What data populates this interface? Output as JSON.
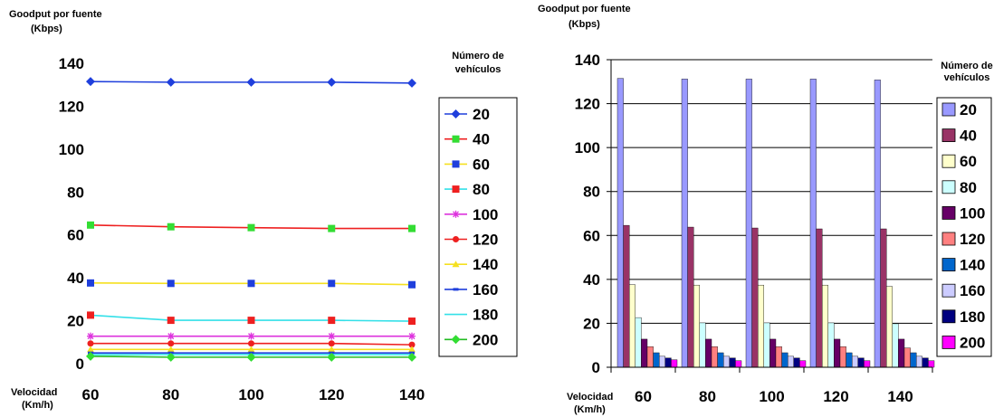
{
  "chart_data": [
    {
      "type": "line",
      "ylabel": [
        "Goodput por fuente",
        "(Kbps)"
      ],
      "xlabel": [
        "Velocidad",
        "(Km/h)"
      ],
      "legend_title": [
        "Número de",
        "vehículos"
      ],
      "x": [
        60,
        80,
        100,
        120,
        140
      ],
      "yticks": [
        0,
        20,
        40,
        60,
        80,
        100,
        120,
        140
      ],
      "ylim": [
        0,
        140
      ],
      "grid": false,
      "legend_position": "right",
      "series": [
        {
          "name": "20",
          "color": "#1f3fdc",
          "marker": "diamond",
          "values": [
            131.5,
            131.2,
            131.2,
            131.2,
            130.8
          ]
        },
        {
          "name": "40",
          "color": "#ee2020",
          "marker": "square",
          "marker_color": "#33dd33",
          "values": [
            64.6,
            63.8,
            63.4,
            63.0,
            63.0
          ]
        },
        {
          "name": "60",
          "color": "#f5e020",
          "marker": "square",
          "marker_color": "#1f3fdc",
          "values": [
            37.6,
            37.4,
            37.4,
            37.4,
            36.8
          ]
        },
        {
          "name": "80",
          "color": "#33e0e8",
          "marker": "square",
          "marker_color": "#ee2020",
          "values": [
            22.6,
            20.2,
            20.2,
            20.2,
            19.8
          ]
        },
        {
          "name": "100",
          "color": "#dd33dd",
          "marker": "star",
          "values": [
            12.8,
            12.8,
            12.8,
            12.8,
            12.8
          ]
        },
        {
          "name": "120",
          "color": "#ee2020",
          "marker": "circle",
          "values": [
            9.4,
            9.4,
            9.4,
            9.4,
            8.8
          ]
        },
        {
          "name": "140",
          "color": "#f5e020",
          "marker": "triangle",
          "values": [
            6.6,
            6.6,
            6.6,
            6.6,
            6.6
          ]
        },
        {
          "name": "160",
          "color": "#1f3fdc",
          "marker": "dash",
          "values": [
            5.0,
            5.0,
            5.0,
            5.0,
            5.0
          ]
        },
        {
          "name": "180",
          "color": "#33e0e8",
          "marker": "none",
          "values": [
            4.2,
            4.2,
            4.2,
            4.2,
            4.2
          ]
        },
        {
          "name": "200",
          "color": "#22bb22",
          "marker": "diamond",
          "marker_color": "#33dd33",
          "values": [
            3.4,
            3.0,
            3.0,
            3.0,
            3.0
          ]
        }
      ]
    },
    {
      "type": "bar",
      "ylabel": [
        "Goodput por fuente",
        "(Kbps)"
      ],
      "xlabel": [
        "Velocidad",
        "(Km/h)"
      ],
      "legend_title": [
        "Número de",
        "vehículos"
      ],
      "categories": [
        "60",
        "80",
        "100",
        "120",
        "140"
      ],
      "yticks": [
        0,
        20,
        40,
        60,
        80,
        100,
        120,
        140
      ],
      "ylim": [
        0,
        140
      ],
      "grid": true,
      "legend_position": "right",
      "series": [
        {
          "name": "20",
          "color": "#9999ff",
          "values": [
            131.5,
            131.2,
            131.2,
            131.2,
            130.8
          ]
        },
        {
          "name": "40",
          "color": "#993366",
          "values": [
            64.6,
            63.8,
            63.4,
            63.0,
            63.0
          ]
        },
        {
          "name": "60",
          "color": "#ffffcc",
          "values": [
            37.6,
            37.4,
            37.4,
            37.4,
            36.8
          ]
        },
        {
          "name": "80",
          "color": "#ccffff",
          "values": [
            22.6,
            20.2,
            20.2,
            20.2,
            19.8
          ]
        },
        {
          "name": "100",
          "color": "#660066",
          "values": [
            12.8,
            12.8,
            12.8,
            12.8,
            12.8
          ]
        },
        {
          "name": "120",
          "color": "#ff8080",
          "values": [
            9.4,
            9.4,
            9.4,
            9.4,
            8.8
          ]
        },
        {
          "name": "140",
          "color": "#0066cc",
          "values": [
            6.6,
            6.6,
            6.6,
            6.6,
            6.6
          ]
        },
        {
          "name": "160",
          "color": "#ccccff",
          "values": [
            5.0,
            5.0,
            5.0,
            5.0,
            5.0
          ]
        },
        {
          "name": "180",
          "color": "#000080",
          "values": [
            4.2,
            4.2,
            4.2,
            4.2,
            4.2
          ]
        },
        {
          "name": "200",
          "color": "#ff00ff",
          "values": [
            3.4,
            3.0,
            3.0,
            3.0,
            3.0
          ]
        }
      ]
    }
  ]
}
